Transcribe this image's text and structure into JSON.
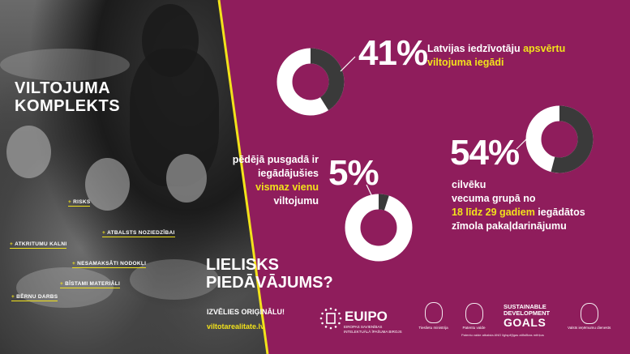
{
  "panel": {
    "title_line1": "VILTOJUMA",
    "title_line2": "KOMPLEKTS",
    "tags": [
      "RISKS",
      "ATBALSTS NOZIEDZĪBAI",
      "ATKRITUMU KALNI",
      "NESAMAKSĀTI NODOKĻI",
      "BĪSTAMI MATERIĀLI",
      "BĒRNU DARBS"
    ]
  },
  "stats": {
    "s41": {
      "value": "41%",
      "percent": 41,
      "line1_a": "Latvijas iedzīvotāju ",
      "line1_b": "apsvērtu",
      "line2": "viltojuma iegādi"
    },
    "s54": {
      "value": "54%",
      "percent": 54,
      "line1": "cilvēku",
      "line2": "vecuma grupā no",
      "line3_a": "18 līdz 29 gadiem",
      "line3_b": " iegādātos",
      "line4": "zīmola pakaļdarinājumu"
    },
    "s5": {
      "value": "5%",
      "percent": 5,
      "line1": "pēdējā pusgadā ir",
      "line2": "iegādājušies",
      "line3": "vismaz vienu",
      "line4": "viltojumu"
    }
  },
  "offer": {
    "line1": "LIELISKS",
    "line2": "PIEDĀVĀJUMS?"
  },
  "choose": "IZVĒLIES ORIĢINĀLU!",
  "site": "viltotarealitate.lv",
  "logos": {
    "euipo_word": "EUIPO",
    "euipo_sub": "EIROPAS SAVIENĪBAS INTELEKTUĀLĀ ĪPAŠUMA BIROJS",
    "ministry": "Tieslietu ministrija",
    "patent": "Patentu valde",
    "sdg_line1": "SUSTAINABLE",
    "sdg_line2": "DEVELOPMENT",
    "sdg_line3": "GOALS",
    "revenue": "Valsts ieņēmumu dienests",
    "footnote": "Patentu valde atbalsta ANO ilgtspējīgas attīstības mērķus"
  },
  "colors": {
    "background": "#8f1d5c",
    "accent": "#f2e21b",
    "ring_light": "#ffffff",
    "ring_dark": "#3a3a3a"
  }
}
